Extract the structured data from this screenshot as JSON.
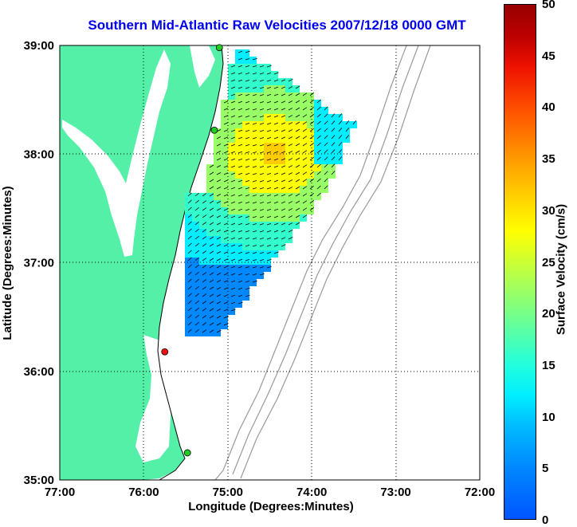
{
  "title": "Southern Mid-Atlantic Raw Velocities 2007/12/18 0000 GMT",
  "axes": {
    "xlabel": "Longitude (Degrees:Minutes)",
    "ylabel": "Latitude (Degrees:Minutes)",
    "x_ticks": [
      "77:00",
      "76:00",
      "75:00",
      "74:00",
      "73:00",
      "72:00"
    ],
    "y_ticks": [
      "39:00",
      "38:00",
      "37:00",
      "36:00",
      "35:00"
    ],
    "xlim": [
      -77,
      -72
    ],
    "ylim": [
      35,
      39
    ],
    "grid": "dotted"
  },
  "colorbar": {
    "label": "Surface Velocity (cm/s)",
    "ticks": [
      "50",
      "45",
      "40",
      "35",
      "30",
      "25",
      "20",
      "15",
      "10",
      "5",
      "0"
    ],
    "range": [
      0,
      50
    ]
  },
  "colors": {
    "land": "#55f0a8",
    "bathymetry": "#999999",
    "title": "#0000ee"
  },
  "stations": [
    {
      "lon": -75.1,
      "lat": 38.98,
      "color": "#22cc22"
    },
    {
      "lon": -75.16,
      "lat": 38.22,
      "color": "#22cc22"
    },
    {
      "lon": -75.75,
      "lat": 36.18,
      "color": "#ee1111"
    },
    {
      "lon": -75.48,
      "lat": 35.25,
      "color": "#22cc22"
    }
  ]
}
